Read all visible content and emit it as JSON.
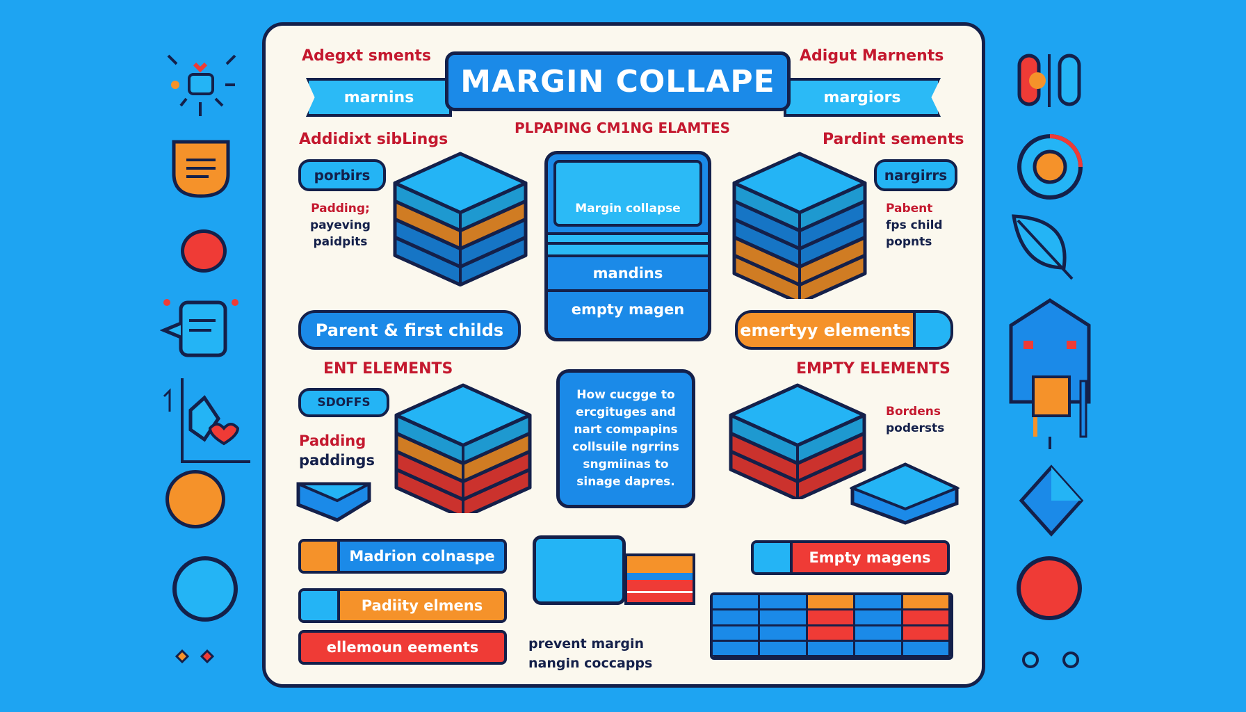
{
  "colors": {
    "background": "#1ea4f2",
    "card": "#fbf8ee",
    "blue": "#1b8ae8",
    "cyan": "#24b4f5",
    "orange": "#f5922a",
    "red": "#ef3b36",
    "navy": "#14204a",
    "label_red": "#c4182e"
  },
  "header": {
    "title": "MARGIN COLLAPE",
    "ribbon_left": "marnins",
    "ribbon_right": "margiors",
    "corner_left": "Adegxt sments",
    "corner_right": "Adigut Marnents",
    "subtitle": "PLPAPING CM1NG ELAMTES"
  },
  "top_left": {
    "heading": "Addidixt sibLings",
    "pill": "porbirs",
    "note": [
      "Padding;",
      "payeving",
      "paidpits"
    ],
    "button": "Parent & first childs",
    "layers": [
      "#24b4f5",
      "#f5922a",
      "#1b8ae8",
      "#1b8ae8"
    ]
  },
  "center": {
    "box_label": "Margin collapse",
    "band_label": "mandins",
    "bottom_label": "empty magen"
  },
  "top_right": {
    "heading": "Pardint sements",
    "pill": "nargirrs",
    "note": [
      "Pabent",
      "fps child",
      "popnts"
    ],
    "button": "emertyy elements",
    "layers": [
      "#24b4f5",
      "#1b8ae8",
      "#1b8ae8",
      "#f5922a",
      "#f5922a"
    ]
  },
  "mid_left": {
    "heading": "ENT ELEMENTS",
    "pill": "SDOFFS",
    "note": [
      "Padding",
      "paddings"
    ],
    "layers": [
      "#24b4f5",
      "#f5922a",
      "#ef3b36",
      "#ef3b36"
    ]
  },
  "info_box": {
    "text": "How cucgge to ercgituges and nart compapins collsuile ngrrins sngmiinas to sinage dapres."
  },
  "mid_right": {
    "heading": "EMPTY ELEMENTS",
    "note": [
      "Bordens",
      "podersts"
    ],
    "layers": [
      "#24b4f5",
      "#ef3b36",
      "#ef3b36"
    ]
  },
  "bottom_left": {
    "bars": [
      {
        "label": "Madrion colnaspe",
        "swatch": "#f5922a",
        "fill": "#1b8ae8"
      },
      {
        "label": "Padiity elmens",
        "swatch": "#24b4f5",
        "fill": "#f5922a"
      },
      {
        "label": "ellemoun eements",
        "swatch": "",
        "fill": "#ef3b36"
      }
    ]
  },
  "bottom_center": {
    "caption": [
      "prevent margin",
      "nangin coccapps"
    ]
  },
  "bottom_right": {
    "bar": {
      "label": "Empty magens",
      "swatch": "#24b4f5",
      "fill": "#ef3b36"
    },
    "grid_rows": [
      [
        "#1b8ae8",
        "#1b8ae8",
        "#f5922a",
        "#1b8ae8",
        "#f5922a"
      ],
      [
        "#1b8ae8",
        "#1b8ae8",
        "#ef3b36",
        "#1b8ae8",
        "#ef3b36"
      ],
      [
        "#1b8ae8",
        "#1b8ae8",
        "#ef3b36",
        "#1b8ae8",
        "#ef3b36"
      ],
      [
        "#1b8ae8",
        "#1b8ae8",
        "#1b8ae8",
        "#1b8ae8",
        "#1b8ae8"
      ]
    ]
  },
  "side_icons": {
    "left": [
      "sparkle-icon",
      "shield-icon",
      "red-dot-icon",
      "chat-icon",
      "heart-tag-icon",
      "orange-circle-icon",
      "blue-circle-icon",
      "diamond-pair-icon"
    ],
    "right": [
      "toggle-icon",
      "target-icon",
      "leaf-icon",
      "house-icon",
      "diamond-icon",
      "red-circle-icon",
      "dots-icon"
    ]
  }
}
